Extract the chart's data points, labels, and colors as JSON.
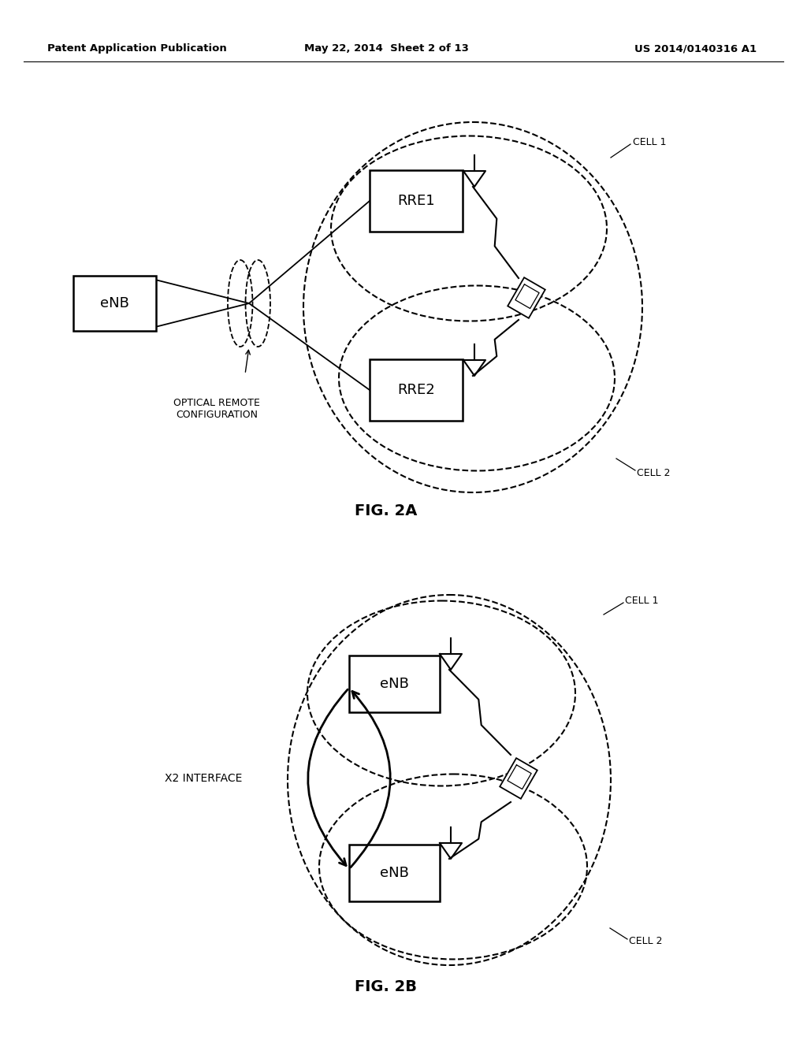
{
  "bg_color": "#ffffff",
  "header_left": "Patent Application Publication",
  "header_mid": "May 22, 2014  Sheet 2 of 13",
  "header_right": "US 2014/0140316 A1",
  "fig2a_label": "FIG. 2A",
  "fig2b_label": "FIG. 2B",
  "cell1_label": "CELL 1",
  "cell2_label": "CELL 2",
  "enb_label": "eNB",
  "rre1_label": "RRE1",
  "rre2_label": "RRE2",
  "optical_label": "OPTICAL REMOTE\nCONFIGURATION",
  "x2_label": "X2 INTERFACE"
}
